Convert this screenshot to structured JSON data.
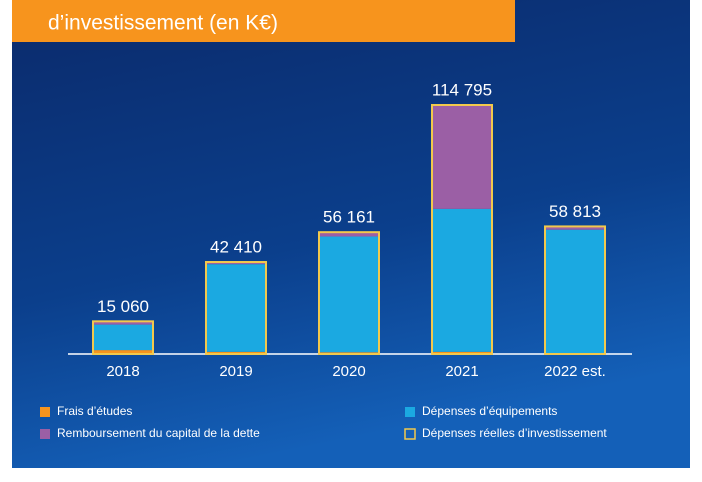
{
  "chart_data": {
    "type": "stacked-bar",
    "title": "d’investissement (en K€)",
    "categories": [
      "2018",
      "2019",
      "2020",
      "2021",
      "2022 est."
    ],
    "series": [
      {
        "name": "Frais d’études",
        "color": "#f7941d",
        "values": [
          1800,
          1000,
          800,
          1000,
          300
        ]
      },
      {
        "name": "Dépenses d’équipements",
        "color": "#1ba9e1",
        "values": [
          11760,
          40410,
          53361,
          65895,
          57013
        ]
      },
      {
        "name": "Remboursement du capital de la dette",
        "color": "#9b5fa5",
        "values": [
          1500,
          1000,
          2000,
          47900,
          1500
        ]
      },
      {
        "name": "Dépenses réelles d’investissement",
        "color": "#f2c94c",
        "stack": false,
        "values": [
          15060,
          42410,
          56161,
          114795,
          58813
        ],
        "value_labels": [
          "15 060",
          "42 410",
          "56 161",
          "114 795",
          "58 813"
        ]
      }
    ]
  }
}
